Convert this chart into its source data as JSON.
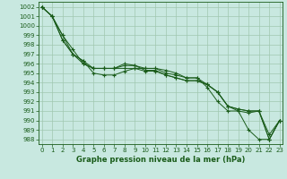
{
  "bg_color": "#c8e8e0",
  "grid_color": "#a0c8b0",
  "line_color": "#1a5c1a",
  "title": "Graphe pression niveau de la mer (hPa)",
  "ylim": [
    987.5,
    1002.5
  ],
  "xlim": [
    -0.3,
    23.3
  ],
  "yticks": [
    988,
    989,
    990,
    991,
    992,
    993,
    994,
    995,
    996,
    997,
    998,
    999,
    1000,
    1001,
    1002
  ],
  "xticks": [
    0,
    1,
    2,
    3,
    4,
    5,
    6,
    7,
    8,
    9,
    10,
    11,
    12,
    13,
    14,
    15,
    16,
    17,
    18,
    19,
    20,
    21,
    22,
    23
  ],
  "series": [
    [
      1002,
      1001,
      999,
      997.5,
      996.0,
      995.5,
      995.5,
      995.5,
      995.5,
      995.5,
      995.5,
      995.5,
      995.3,
      995.0,
      994.5,
      994.5,
      993.5,
      992.0,
      991.0,
      991.0,
      989.0,
      988.0,
      988.0,
      990.0
    ],
    [
      1002,
      1001,
      999,
      997.0,
      996.0,
      995.5,
      995.5,
      995.5,
      996.0,
      995.8,
      995.5,
      995.5,
      995.0,
      994.8,
      994.5,
      994.5,
      993.8,
      993.0,
      991.5,
      991.2,
      991.0,
      991.0,
      988.5,
      990.0
    ],
    [
      1002,
      1001,
      998.5,
      997.0,
      996.3,
      995.5,
      995.5,
      995.5,
      995.8,
      995.8,
      995.3,
      995.3,
      994.8,
      994.5,
      994.2,
      994.2,
      993.8,
      993.0,
      991.5,
      991.2,
      991.0,
      991.0,
      988.0,
      990.0
    ],
    [
      1002,
      1001,
      998.5,
      997.0,
      996.3,
      995.0,
      994.8,
      994.8,
      995.2,
      995.5,
      995.2,
      995.2,
      994.8,
      994.5,
      994.2,
      994.2,
      993.8,
      993.0,
      991.5,
      991.0,
      990.8,
      991.0,
      988.0,
      990.0
    ]
  ],
  "tick_fontsize": 5,
  "title_fontsize": 6,
  "marker_size": 3,
  "linewidth": 0.7
}
